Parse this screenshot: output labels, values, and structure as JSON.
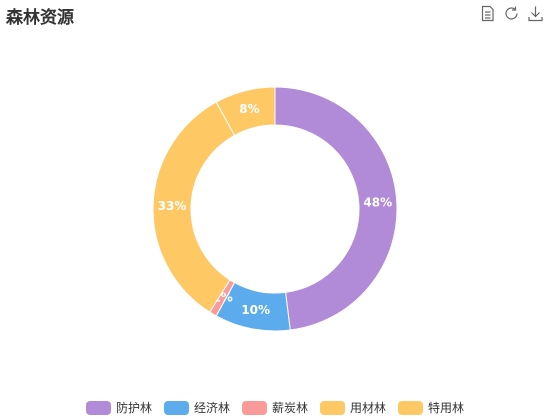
{
  "header": {
    "title": "森林资源"
  },
  "toolbar": {
    "icons": [
      "data-view-icon",
      "refresh-icon",
      "download-icon"
    ]
  },
  "chart_data": {
    "type": "pie",
    "title": "森林资源",
    "categories": [
      "防护林",
      "经济林",
      "薪炭林",
      "用材林",
      "特用林"
    ],
    "values": [
      48,
      10,
      1,
      33,
      8
    ],
    "labels": [
      "48%",
      "10%",
      "1%",
      "33%",
      "8%"
    ],
    "colors": [
      "#b18ad8",
      "#5cabec",
      "#f99b9b",
      "#fec865",
      "#fec865"
    ],
    "donut": true,
    "legend_position": "bottom"
  }
}
